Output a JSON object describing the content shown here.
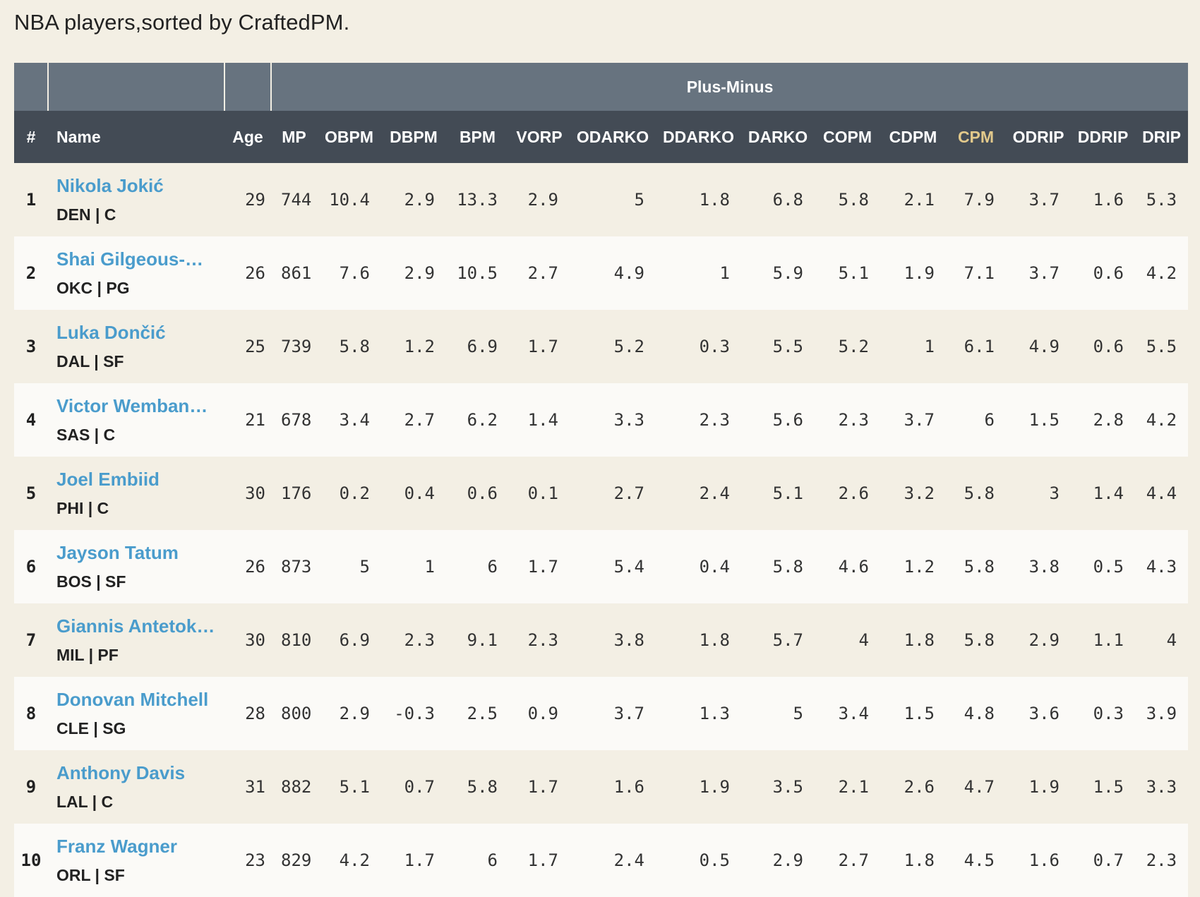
{
  "caption": "NBA players,sorted by CraftedPM.",
  "group_header": "Plus-Minus",
  "columns": [
    "#",
    "Name",
    "Age",
    "MP",
    "OBPM",
    "DBPM",
    "BPM",
    "VORP",
    "ODARKO",
    "DDARKO",
    "DARKO",
    "COPM",
    "CDPM",
    "CPM",
    "ODRIP",
    "DDRIP",
    "DRIP"
  ],
  "sorted_column": "CPM",
  "colors": {
    "link": "#4a9ccc",
    "active_header": "#e2c98b",
    "header_dark": "#434b55",
    "header_group": "#67737f",
    "page_bg": "#f3efe4"
  },
  "rows": [
    {
      "rank": "1",
      "name": "Nikola Jokić",
      "team": "DEN | C",
      "age": "29",
      "mp": "744",
      "obpm": "10.4",
      "dbpm": "2.9",
      "bpm": "13.3",
      "vorp": "2.9",
      "odarko": "5",
      "ddarko": "1.8",
      "darko": "6.8",
      "copm": "5.8",
      "cdpm": "2.1",
      "cpm": "7.9",
      "odrip": "3.7",
      "ddrip": "1.6",
      "drip": "5.3"
    },
    {
      "rank": "2",
      "name": "Shai Gilgeous-…",
      "team": "OKC | PG",
      "age": "26",
      "mp": "861",
      "obpm": "7.6",
      "dbpm": "2.9",
      "bpm": "10.5",
      "vorp": "2.7",
      "odarko": "4.9",
      "ddarko": "1",
      "darko": "5.9",
      "copm": "5.1",
      "cdpm": "1.9",
      "cpm": "7.1",
      "odrip": "3.7",
      "ddrip": "0.6",
      "drip": "4.2"
    },
    {
      "rank": "3",
      "name": "Luka Dončić",
      "team": "DAL | SF",
      "age": "25",
      "mp": "739",
      "obpm": "5.8",
      "dbpm": "1.2",
      "bpm": "6.9",
      "vorp": "1.7",
      "odarko": "5.2",
      "ddarko": "0.3",
      "darko": "5.5",
      "copm": "5.2",
      "cdpm": "1",
      "cpm": "6.1",
      "odrip": "4.9",
      "ddrip": "0.6",
      "drip": "5.5"
    },
    {
      "rank": "4",
      "name": "Victor Wemban…",
      "team": "SAS | C",
      "age": "21",
      "mp": "678",
      "obpm": "3.4",
      "dbpm": "2.7",
      "bpm": "6.2",
      "vorp": "1.4",
      "odarko": "3.3",
      "ddarko": "2.3",
      "darko": "5.6",
      "copm": "2.3",
      "cdpm": "3.7",
      "cpm": "6",
      "odrip": "1.5",
      "ddrip": "2.8",
      "drip": "4.2"
    },
    {
      "rank": "5",
      "name": "Joel Embiid",
      "team": "PHI | C",
      "age": "30",
      "mp": "176",
      "obpm": "0.2",
      "dbpm": "0.4",
      "bpm": "0.6",
      "vorp": "0.1",
      "odarko": "2.7",
      "ddarko": "2.4",
      "darko": "5.1",
      "copm": "2.6",
      "cdpm": "3.2",
      "cpm": "5.8",
      "odrip": "3",
      "ddrip": "1.4",
      "drip": "4.4"
    },
    {
      "rank": "6",
      "name": "Jayson Tatum",
      "team": "BOS | SF",
      "age": "26",
      "mp": "873",
      "obpm": "5",
      "dbpm": "1",
      "bpm": "6",
      "vorp": "1.7",
      "odarko": "5.4",
      "ddarko": "0.4",
      "darko": "5.8",
      "copm": "4.6",
      "cdpm": "1.2",
      "cpm": "5.8",
      "odrip": "3.8",
      "ddrip": "0.5",
      "drip": "4.3"
    },
    {
      "rank": "7",
      "name": "Giannis Antetok…",
      "team": "MIL | PF",
      "age": "30",
      "mp": "810",
      "obpm": "6.9",
      "dbpm": "2.3",
      "bpm": "9.1",
      "vorp": "2.3",
      "odarko": "3.8",
      "ddarko": "1.8",
      "darko": "5.7",
      "copm": "4",
      "cdpm": "1.8",
      "cpm": "5.8",
      "odrip": "2.9",
      "ddrip": "1.1",
      "drip": "4"
    },
    {
      "rank": "8",
      "name": "Donovan Mitchell",
      "team": "CLE | SG",
      "age": "28",
      "mp": "800",
      "obpm": "2.9",
      "dbpm": "-0.3",
      "bpm": "2.5",
      "vorp": "0.9",
      "odarko": "3.7",
      "ddarko": "1.3",
      "darko": "5",
      "copm": "3.4",
      "cdpm": "1.5",
      "cpm": "4.8",
      "odrip": "3.6",
      "ddrip": "0.3",
      "drip": "3.9"
    },
    {
      "rank": "9",
      "name": "Anthony Davis",
      "team": "LAL | C",
      "age": "31",
      "mp": "882",
      "obpm": "5.1",
      "dbpm": "0.7",
      "bpm": "5.8",
      "vorp": "1.7",
      "odarko": "1.6",
      "ddarko": "1.9",
      "darko": "3.5",
      "copm": "2.1",
      "cdpm": "2.6",
      "cpm": "4.7",
      "odrip": "1.9",
      "ddrip": "1.5",
      "drip": "3.3"
    },
    {
      "rank": "10",
      "name": "Franz Wagner",
      "team": "ORL | SF",
      "age": "23",
      "mp": "829",
      "obpm": "4.2",
      "dbpm": "1.7",
      "bpm": "6",
      "vorp": "1.7",
      "odarko": "2.4",
      "ddarko": "0.5",
      "darko": "2.9",
      "copm": "2.7",
      "cdpm": "1.8",
      "cpm": "4.5",
      "odrip": "1.6",
      "ddrip": "0.7",
      "drip": "2.3"
    }
  ]
}
